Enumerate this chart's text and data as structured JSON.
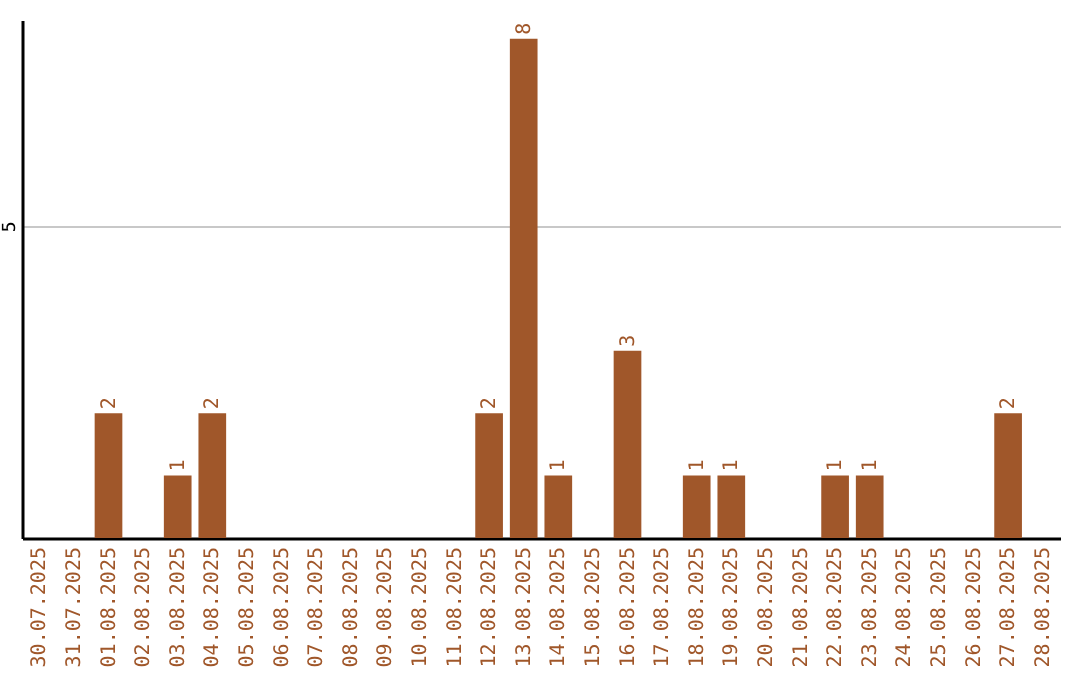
{
  "chart_data": {
    "type": "bar",
    "categories": [
      "30.07.2025",
      "31.07.2025",
      "01.08.2025",
      "02.08.2025",
      "03.08.2025",
      "04.08.2025",
      "05.08.2025",
      "06.08.2025",
      "07.08.2025",
      "08.08.2025",
      "09.08.2025",
      "10.08.2025",
      "11.08.2025",
      "12.08.2025",
      "13.08.2025",
      "14.08.2025",
      "15.08.2025",
      "16.08.2025",
      "17.08.2025",
      "18.08.2025",
      "19.08.2025",
      "20.08.2025",
      "21.08.2025",
      "22.08.2025",
      "23.08.2025",
      "24.08.2025",
      "25.08.2025",
      "26.08.2025",
      "27.08.2025",
      "28.08.2025"
    ],
    "values": [
      0,
      0,
      2,
      0,
      1,
      2,
      0,
      0,
      0,
      0,
      0,
      0,
      0,
      2,
      8,
      1,
      0,
      3,
      0,
      1,
      1,
      0,
      0,
      1,
      1,
      0,
      0,
      0,
      2,
      0
    ],
    "value_labels": [
      null,
      null,
      "2",
      null,
      "1",
      "2",
      null,
      null,
      null,
      null,
      null,
      null,
      null,
      "2",
      "8",
      "1",
      null,
      "3",
      null,
      "1",
      "1",
      null,
      null,
      "1",
      "1",
      null,
      null,
      null,
      "2",
      null
    ],
    "color": "#a0572a",
    "ylim": [
      0,
      8.3
    ],
    "yticks": [
      5
    ],
    "grid": "y"
  }
}
